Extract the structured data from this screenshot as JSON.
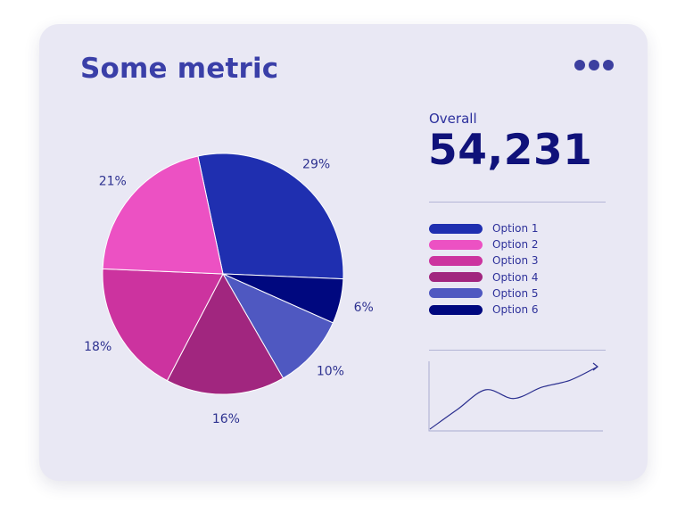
{
  "header": {
    "title": "Some metric"
  },
  "summary": {
    "label": "Overall",
    "value": "54,231"
  },
  "colors": {
    "card_bg": "#e9e8f4",
    "title": "#3a3fa8",
    "value": "#10127a",
    "slices": [
      "#1f2fb0",
      "#00087f",
      "#4f58c1",
      "#a1267f",
      "#cc339f",
      "#ec51c3"
    ]
  },
  "icons": {
    "menu": "more-horizontal-icon"
  },
  "chart_data": [
    {
      "type": "pie",
      "title": "Some metric",
      "slices": [
        {
          "label": "Option 1",
          "value": 29,
          "display": "29%",
          "color": "#1f2fb0"
        },
        {
          "label": "Option 6",
          "value": 6,
          "display": "6%",
          "color": "#00087f"
        },
        {
          "label": "Option 5",
          "value": 10,
          "display": "10%",
          "color": "#4f58c1"
        },
        {
          "label": "Option 4",
          "value": 16,
          "display": "16%",
          "color": "#a1267f"
        },
        {
          "label": "Option 3",
          "value": 18,
          "display": "18%",
          "color": "#cc339f"
        },
        {
          "label": "Option 2",
          "value": 21,
          "display": "21%",
          "color": "#ec51c3"
        }
      ],
      "start_angle_deg": 258,
      "direction": "clockwise",
      "legend": {
        "placement": "right",
        "entries": [
          {
            "label": "Option 1",
            "color": "#1f2fb0"
          },
          {
            "label": "Option 2",
            "color": "#ec51c3"
          },
          {
            "label": "Option 3",
            "color": "#cc339f"
          },
          {
            "label": "Option 4",
            "color": "#a1267f"
          },
          {
            "label": "Option 5",
            "color": "#4f58c1"
          },
          {
            "label": "Option 6",
            "color": "#00087f"
          }
        ]
      }
    },
    {
      "type": "line",
      "title": "",
      "x": [
        0,
        1,
        2,
        3,
        4,
        5,
        6
      ],
      "y": [
        0,
        3.2,
        6.3,
        4.9,
        6.7,
        7.8,
        10
      ],
      "grid": false,
      "color": "#2b2f8f",
      "arrow_end": true
    }
  ]
}
